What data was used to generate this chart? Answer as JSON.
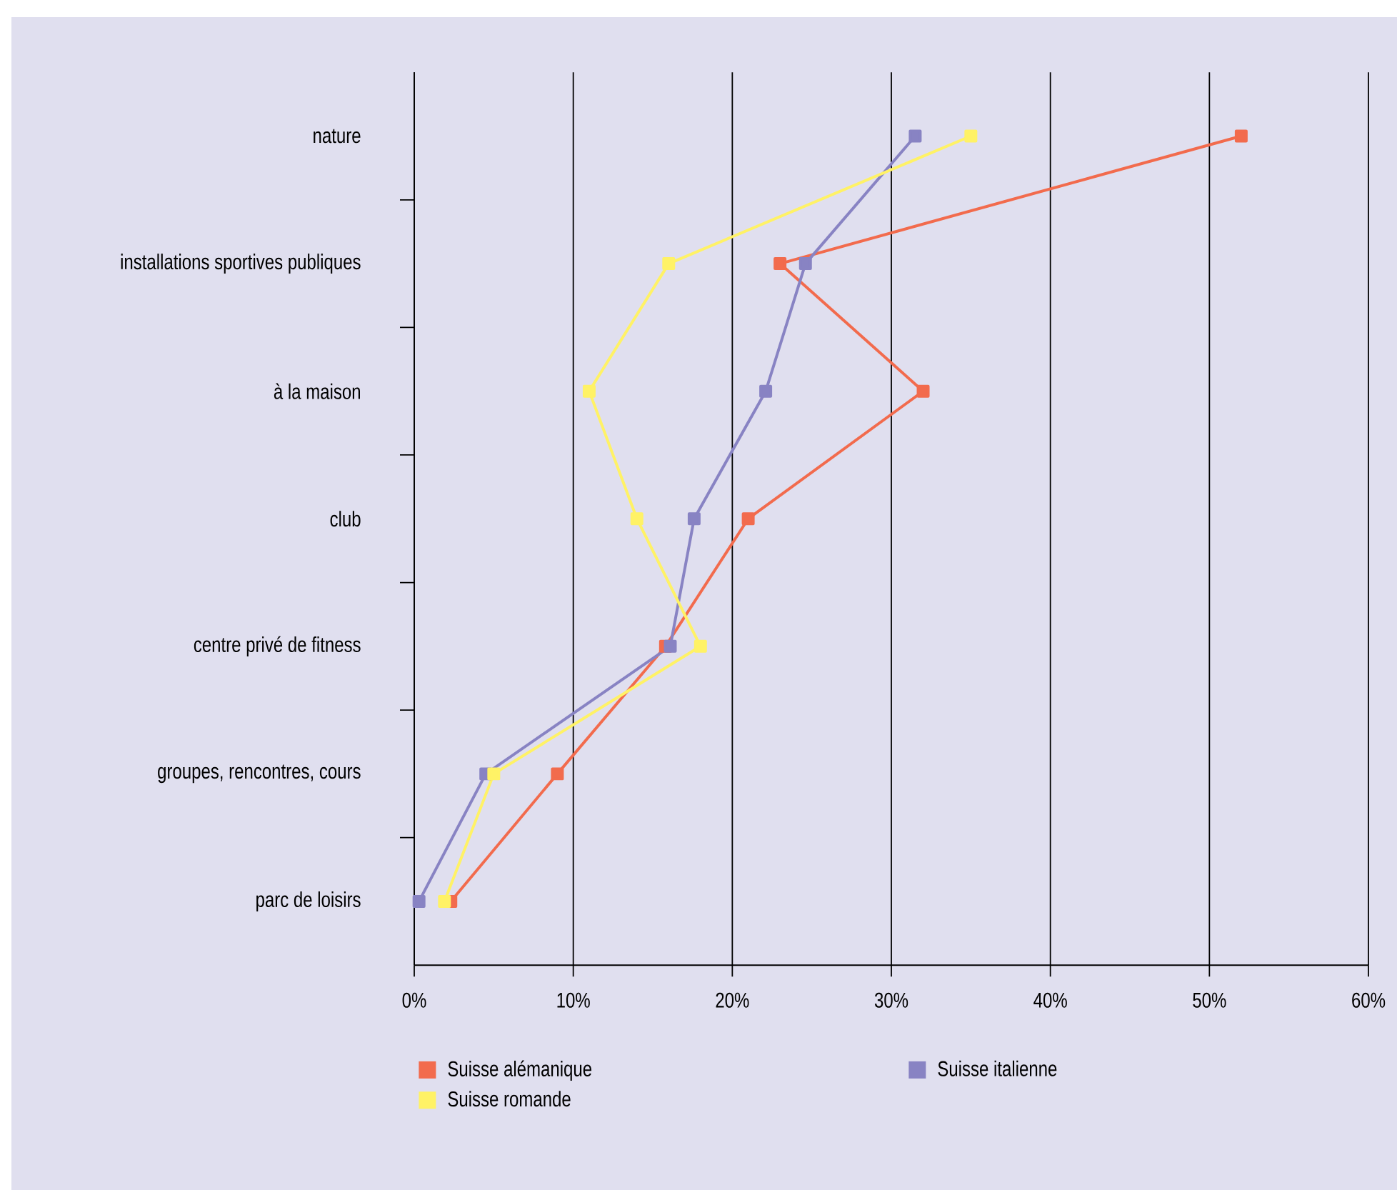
{
  "chart_data": {
    "type": "line",
    "orientation": "horizontal",
    "categories": [
      "nature",
      "installations sportives publiques",
      "à la maison",
      "club",
      "centre privé de fitness",
      "groupes, rencontres, cours",
      "parc de loisirs"
    ],
    "series": [
      {
        "name": "Suisse alémanique",
        "color": "#f26b4d",
        "values": [
          52.0,
          23.0,
          32.0,
          21.0,
          15.8,
          9.0,
          2.3
        ]
      },
      {
        "name": "Suisse italienne",
        "color": "#8883c3",
        "values": [
          31.5,
          24.6,
          22.1,
          17.6,
          16.1,
          4.5,
          0.3
        ]
      },
      {
        "name": "Suisse romande",
        "color": "#fff266",
        "values": [
          35.0,
          16.0,
          11.0,
          14.0,
          18.0,
          5.0,
          1.9
        ]
      }
    ],
    "xlim": [
      0,
      60
    ],
    "xticks": [
      {
        "value": 0,
        "label": "0%"
      },
      {
        "value": 10,
        "label": "10%"
      },
      {
        "value": 20,
        "label": "20%"
      },
      {
        "value": 30,
        "label": "30%"
      },
      {
        "value": 40,
        "label": "40%"
      },
      {
        "value": 50,
        "label": "50%"
      },
      {
        "value": 60,
        "label": "60%"
      }
    ],
    "grid": "x",
    "legend": "bottom",
    "marker": "square",
    "line_style": "solid"
  }
}
